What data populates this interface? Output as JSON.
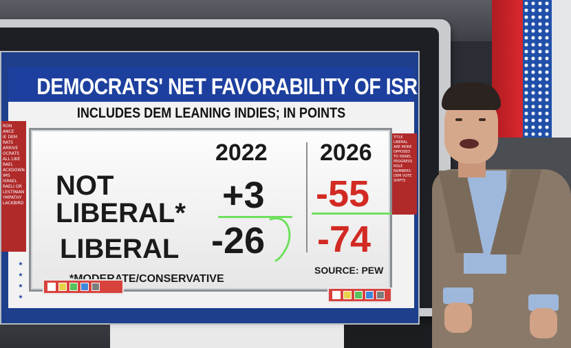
{
  "graphic": {
    "title": "DEMOCRATS' NET FAVORABILITY OF ISRAEL",
    "subtitle": "INCLUDES DEM LEANING INDIES; IN POINTS",
    "columns": [
      "2022",
      "2026"
    ],
    "rows": [
      {
        "label_line1": "NOT",
        "label_line2": "LIBERAL*",
        "values": [
          "+3",
          "-55"
        ]
      },
      {
        "label_line1": "LIBERAL",
        "label_line2": "",
        "values": [
          "-26",
          "-74"
        ]
      }
    ],
    "footnote": "*MODERATE/CONSERVATIVE",
    "source": "SOURCE: PEW"
  },
  "left_rail": {
    "items": [
      "RON",
      "ANCE",
      "IE DEM",
      "RATS",
      "ARRIVE",
      "OCRATS",
      "ALL LIKE",
      "RAEL",
      "ACKDOWN",
      "IMS",
      "ISRAEL",
      "RAELI OR",
      "LESTINIAN",
      "YMPATHY",
      "LACKBIRD"
    ]
  },
  "right_rail": {
    "items": [
      "TITLE",
      "LIBERAL",
      "ARE MORE",
      "OPPOSED",
      "TO ISRAEL",
      "PROGRESS",
      "ROLE",
      "NUMBERS",
      "DEM VOTE",
      "SHIFTS"
    ]
  },
  "colors": {
    "title_band": "#1d3f9e",
    "negative_red": "#d22a23",
    "annotation_green": "#6ee05c",
    "rail_red": "#b02a2a"
  },
  "toolbar_swatches": [
    "#ffffff",
    "#e8d24a",
    "#56c25a",
    "#3f86d8",
    "#7d7d7d"
  ]
}
